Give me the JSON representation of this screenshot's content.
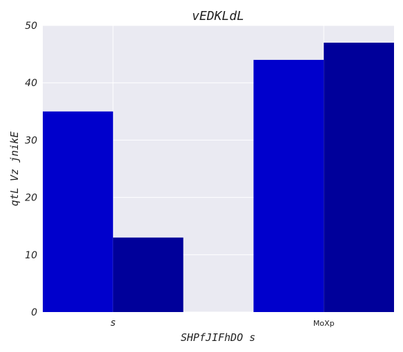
{
  "chart_data": {
    "type": "bar",
    "title": "vEDKLdL",
    "xlabel": "SHPfJIFhDO s",
    "ylabel": "qtL Vz jnikE",
    "categories": [
      "s",
      "MoXp"
    ],
    "series": [
      {
        "values": [
          35,
          44
        ],
        "color": "#0000cc"
      },
      {
        "values": [
          13,
          47
        ],
        "color": "#00009a"
      }
    ],
    "ylim": [
      0,
      50
    ],
    "yticks": [
      "0",
      "10",
      "20",
      "30",
      "40",
      "50"
    ],
    "grid": true,
    "background": "#eaeaf2",
    "grid_color": "#ffffff"
  }
}
